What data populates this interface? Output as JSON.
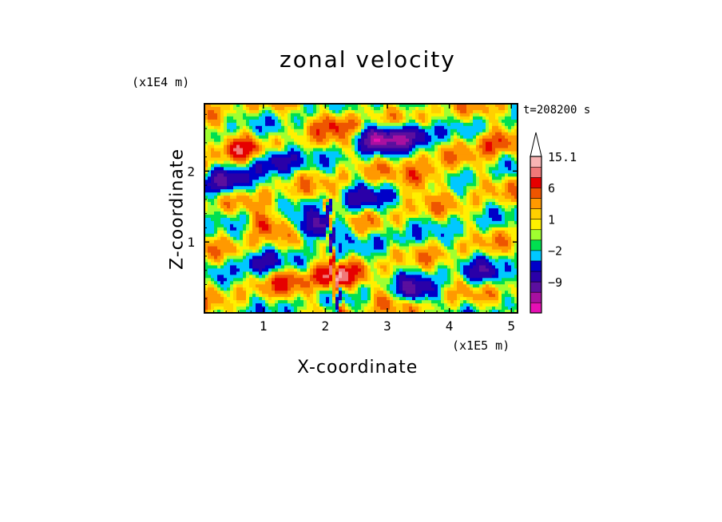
{
  "chart_data": {
    "type": "heatmap",
    "title": "zonal velocity",
    "xlabel": "X-coordinate",
    "ylabel": "Z-coordinate",
    "x_unit_label": "(x1E5 m)",
    "y_unit_label": "(x1E4 m)",
    "time_label": "t=208200 s",
    "xlim": [
      0.05,
      5.1
    ],
    "ylim": [
      0.0,
      2.95
    ],
    "x_ticks": [
      1,
      2,
      3,
      4,
      5
    ],
    "y_ticks": [
      1,
      2
    ],
    "colorbar": {
      "levels": [
        -15,
        -12,
        -9,
        -6,
        -4,
        -2,
        -1,
        0,
        1,
        2,
        4,
        6,
        9,
        12,
        15.1
      ],
      "labels": [
        "15.1",
        "6",
        "1",
        "-2",
        "-9"
      ],
      "colors": [
        "#e60fb4",
        "#a810a0",
        "#5b0f9e",
        "#2a00a8",
        "#0000c8",
        "#00c8ff",
        "#00e050",
        "#a0ff30",
        "#fff000",
        "#ffd000",
        "#ff9900",
        "#ee5500",
        "#e60000",
        "#f07878",
        "#f8b4b4"
      ],
      "extend": "max"
    },
    "field_features": [
      {
        "x": 0.35,
        "z": 1.85,
        "u": -9
      },
      {
        "x": 0.6,
        "z": 2.3,
        "u": 6
      },
      {
        "x": 1.2,
        "z": 2.15,
        "u": -8
      },
      {
        "x": 1.05,
        "z": 1.25,
        "u": 6
      },
      {
        "x": 1.45,
        "z": 1.2,
        "u": -2
      },
      {
        "x": 0.9,
        "z": 0.7,
        "u": -6
      },
      {
        "x": 1.4,
        "z": 0.45,
        "u": 4
      },
      {
        "x": 1.9,
        "z": 1.2,
        "u": -9
      },
      {
        "x": 2.15,
        "z": 0.5,
        "u": 9
      },
      {
        "x": 2.2,
        "z": 2.7,
        "u": 6
      },
      {
        "x": 2.85,
        "z": 2.45,
        "u": -12
      },
      {
        "x": 3.4,
        "z": 2.5,
        "u": -9
      },
      {
        "x": 2.6,
        "z": 1.6,
        "u": -6
      },
      {
        "x": 3.15,
        "z": 1.05,
        "u": -2
      },
      {
        "x": 3.6,
        "z": 1.9,
        "u": 6
      },
      {
        "x": 4.3,
        "z": 1.15,
        "u": -1
      },
      {
        "x": 4.55,
        "z": 0.55,
        "u": -6
      },
      {
        "x": 4.7,
        "z": 2.4,
        "u": 5
      },
      {
        "x": 3.0,
        "z": 0.2,
        "u": 3
      },
      {
        "x": 3.4,
        "z": 0.3,
        "u": -9
      }
    ]
  }
}
